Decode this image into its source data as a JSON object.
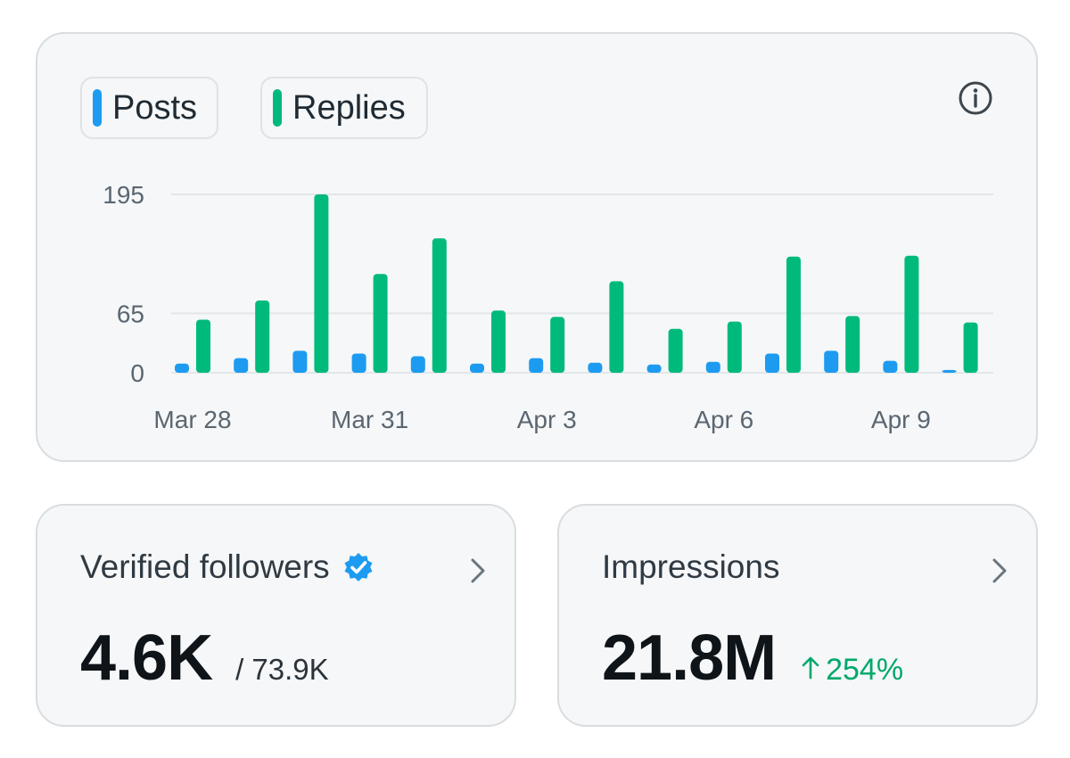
{
  "legend": {
    "posts_label": "Posts",
    "replies_label": "Replies",
    "posts_color": "#1d9bf0",
    "replies_color": "#00ba7c"
  },
  "info_icon": "info-icon",
  "chart_data": {
    "type": "bar",
    "categories": [
      "Mar 28",
      "Mar 29",
      "Mar 30",
      "Mar 31",
      "Apr 1",
      "Apr 2",
      "Apr 3",
      "Apr 4",
      "Apr 5",
      "Apr 6",
      "Apr 7",
      "Apr 8",
      "Apr 9",
      "Apr 10"
    ],
    "series": [
      {
        "name": "Posts",
        "color": "#1d9bf0",
        "values": [
          10,
          16,
          24,
          21,
          18,
          10,
          16,
          11,
          9,
          12,
          21,
          24,
          13,
          3
        ]
      },
      {
        "name": "Replies",
        "color": "#00ba7c",
        "values": [
          58,
          79,
          195,
          108,
          147,
          68,
          61,
          100,
          48,
          56,
          127,
          62,
          128,
          55
        ]
      }
    ],
    "x_tick_labels": [
      "Mar 28",
      "",
      "",
      "Mar 31",
      "",
      "",
      "Apr 3",
      "",
      "",
      "Apr 6",
      "",
      "",
      "Apr 9",
      ""
    ],
    "y_ticks": [
      0,
      65,
      195
    ],
    "ylim": [
      0,
      195
    ],
    "grid": true,
    "title": "",
    "xlabel": "",
    "ylabel": ""
  },
  "followers": {
    "title": "Verified followers",
    "value": "4.6K",
    "total": "/ 73.9K",
    "verified_icon": "verified-badge-icon",
    "chevron_icon": "chevron-right-icon"
  },
  "impressions": {
    "title": "Impressions",
    "value": "21.8M",
    "delta": "254%",
    "delta_color": "#00a86b",
    "chevron_icon": "chevron-right-icon"
  }
}
